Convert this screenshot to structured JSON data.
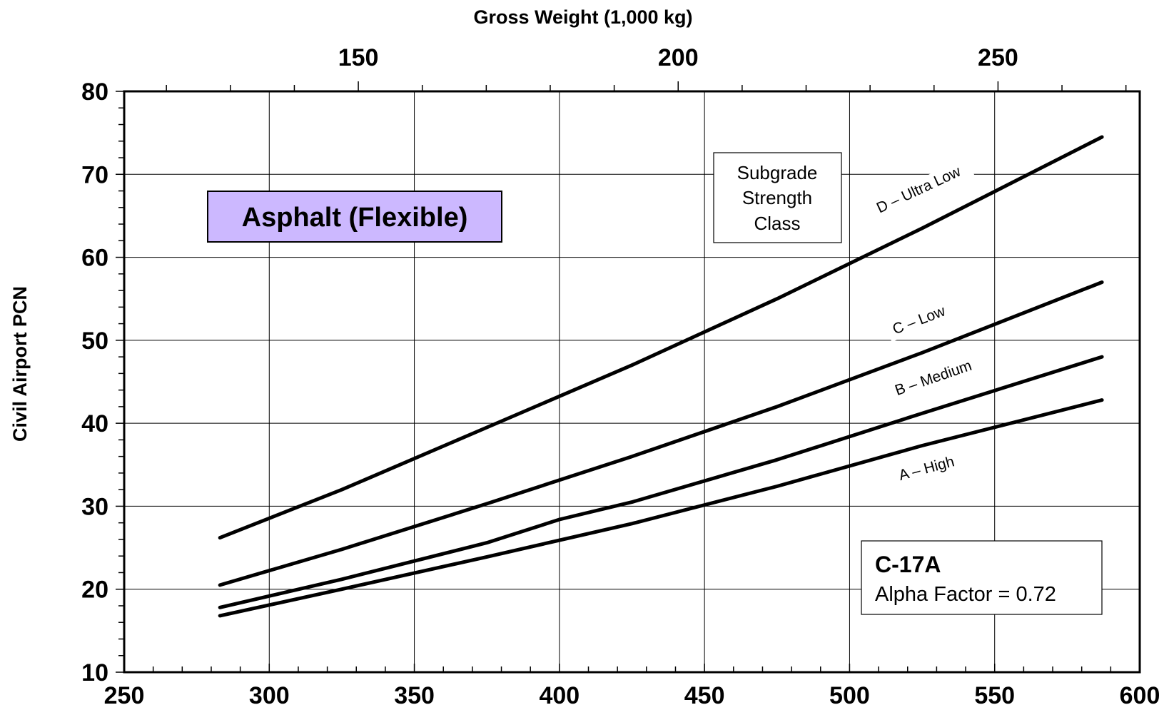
{
  "chart_data": {
    "type": "line",
    "top_axis": {
      "title": "Gross Weight (1,000 kg)",
      "ticks": [
        150,
        200,
        250
      ]
    },
    "xlabel": "",
    "ylabel": "Civil Airport PCN",
    "xlim": [
      250,
      600
    ],
    "ylim": [
      10,
      80
    ],
    "xticks": [
      250,
      300,
      350,
      400,
      450,
      500,
      550,
      600
    ],
    "yticks": [
      10,
      20,
      30,
      40,
      50,
      60,
      70,
      80
    ],
    "grid": true,
    "series": [
      {
        "name": "D – Ultra Low",
        "x": [
          283,
          325,
          375,
          425,
          475,
          525,
          587
        ],
        "y": [
          26.2,
          32.0,
          39.5,
          47.0,
          55.0,
          63.5,
          74.5
        ]
      },
      {
        "name": "C – Low",
        "x": [
          283,
          325,
          375,
          425,
          475,
          525,
          587
        ],
        "y": [
          20.5,
          24.8,
          30.3,
          36.0,
          42.0,
          48.5,
          57.0
        ]
      },
      {
        "name": "B – Medium",
        "x": [
          283,
          325,
          375,
          400,
          425,
          475,
          525,
          587
        ],
        "y": [
          17.8,
          21.2,
          25.6,
          28.4,
          30.5,
          35.6,
          41.2,
          48.0
        ]
      },
      {
        "name": "A – High",
        "x": [
          283,
          325,
          375,
          425,
          475,
          525,
          587
        ],
        "y": [
          16.8,
          20.0,
          23.9,
          27.9,
          32.4,
          37.3,
          42.8
        ]
      }
    ],
    "annotations": {
      "surface_label": "Asphalt (Flexible)",
      "legend_title": [
        "Subgrade",
        "Strength",
        "Class"
      ],
      "aircraft": "C-17A",
      "alpha_factor": "Alpha Factor = 0.72"
    },
    "colors": {
      "surface_box_fill": "#ccb8ff",
      "line": "#000000"
    }
  }
}
